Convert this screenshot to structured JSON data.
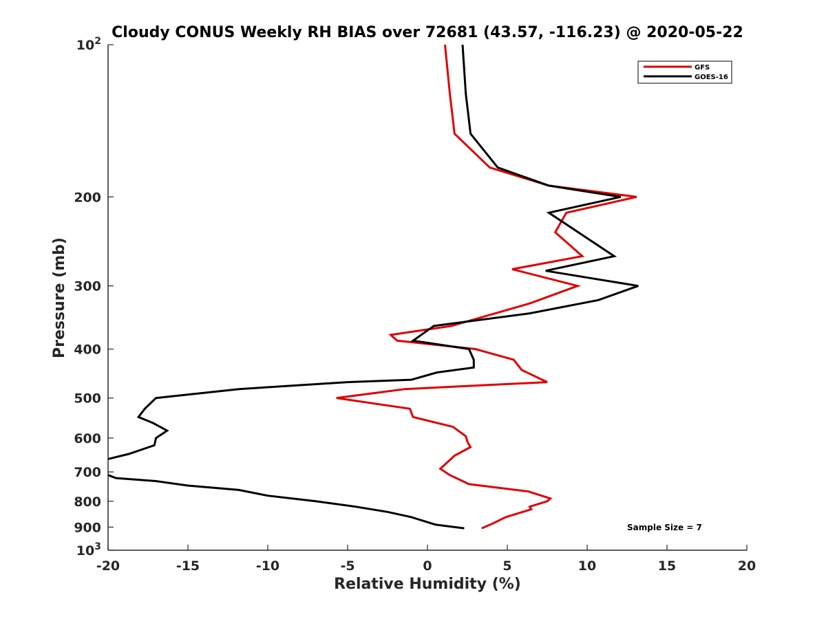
{
  "chart_data": {
    "type": "line",
    "title": "Cloudy CONUS Weekly RH BIAS over 72681 (43.57, -116.23) @ 2020-05-22",
    "xlabel": "Relative Humidity (%)",
    "ylabel": "Pressure (mb)",
    "xlim": [
      -20,
      20
    ],
    "ylim": [
      100,
      1000
    ],
    "y_scale": "log",
    "y_reversed": true,
    "x_ticks": [
      "-20",
      "-15",
      "-10",
      "-5",
      "0",
      "5",
      "10",
      "15",
      "20"
    ],
    "y_ticks": [
      {
        "value": 100,
        "base": "10",
        "exp": "2"
      },
      {
        "value": 200,
        "label": "200"
      },
      {
        "value": 300,
        "label": "300"
      },
      {
        "value": 400,
        "label": "400"
      },
      {
        "value": 500,
        "label": "500"
      },
      {
        "value": 600,
        "label": "600"
      },
      {
        "value": 700,
        "label": "700"
      },
      {
        "value": 800,
        "label": "800"
      },
      {
        "value": 900,
        "label": "900"
      },
      {
        "value": 1000,
        "base": "10",
        "exp": "3"
      }
    ],
    "grid": false,
    "legend_position": "top-right",
    "annotation": "Sample Size = 7",
    "series": [
      {
        "name": "GFS",
        "color": "#e00000",
        "points": [
          [
            1.1,
            100
          ],
          [
            1.4,
            125
          ],
          [
            1.7,
            150
          ],
          [
            3.9,
            175
          ],
          [
            7.6,
            190
          ],
          [
            13.1,
            200
          ],
          [
            8.7,
            215
          ],
          [
            8.0,
            235
          ],
          [
            9.7,
            262
          ],
          [
            5.3,
            278
          ],
          [
            9.4,
            300
          ],
          [
            6.4,
            325
          ],
          [
            1.5,
            360
          ],
          [
            -2.3,
            375
          ],
          [
            -1.9,
            385
          ],
          [
            3.0,
            400
          ],
          [
            5.4,
            420
          ],
          [
            5.9,
            440
          ],
          [
            7.5,
            465
          ],
          [
            -1.4,
            480
          ],
          [
            -5.7,
            500
          ],
          [
            -1.1,
            525
          ],
          [
            -0.9,
            545
          ],
          [
            1.6,
            570
          ],
          [
            2.4,
            595
          ],
          [
            2.5,
            610
          ],
          [
            2.7,
            625
          ],
          [
            1.7,
            650
          ],
          [
            0.8,
            690
          ],
          [
            1.4,
            710
          ],
          [
            2.6,
            740
          ],
          [
            6.3,
            765
          ],
          [
            7.7,
            790
          ],
          [
            7.5,
            800
          ],
          [
            6.4,
            820
          ],
          [
            6.5,
            830
          ],
          [
            4.9,
            860
          ],
          [
            4.1,
            885
          ],
          [
            3.4,
            905
          ]
        ]
      },
      {
        "name": "GOES-16",
        "color": "#000000",
        "points": [
          [
            2.2,
            100
          ],
          [
            2.4,
            125
          ],
          [
            2.7,
            150
          ],
          [
            4.4,
            175
          ],
          [
            7.6,
            190
          ],
          [
            12.1,
            200
          ],
          [
            7.6,
            215
          ],
          [
            11.7,
            262
          ],
          [
            7.4,
            280
          ],
          [
            13.2,
            300
          ],
          [
            10.7,
            320
          ],
          [
            6.4,
            340
          ],
          [
            0.4,
            360
          ],
          [
            -0.9,
            385
          ],
          [
            2.6,
            400
          ],
          [
            2.9,
            420
          ],
          [
            2.9,
            435
          ],
          [
            0.6,
            445
          ],
          [
            -1.0,
            460
          ],
          [
            -5.0,
            465
          ],
          [
            -11.8,
            480
          ],
          [
            -17.0,
            500
          ],
          [
            -17.7,
            525
          ],
          [
            -18.1,
            545
          ],
          [
            -17.2,
            560
          ],
          [
            -16.3,
            580
          ],
          [
            -17.0,
            600
          ],
          [
            -17.1,
            620
          ],
          [
            -18.7,
            645
          ],
          [
            -20.0,
            660
          ]
        ]
      },
      {
        "name": "",
        "color": "#000000",
        "points": [
          [
            -20.0,
            710
          ],
          [
            -19.5,
            720
          ],
          [
            -17.0,
            730
          ],
          [
            -15.0,
            745
          ],
          [
            -11.8,
            760
          ],
          [
            -10.0,
            780
          ],
          [
            -7.0,
            800
          ],
          [
            -4.5,
            820
          ],
          [
            -2.5,
            840
          ],
          [
            -1.0,
            860
          ],
          [
            0.5,
            890
          ],
          [
            2.3,
            905
          ]
        ]
      }
    ]
  },
  "legend": {
    "items": [
      {
        "label": "GFS",
        "color": "#e00000"
      },
      {
        "label": "GOES-16",
        "color": "#000000"
      }
    ]
  }
}
